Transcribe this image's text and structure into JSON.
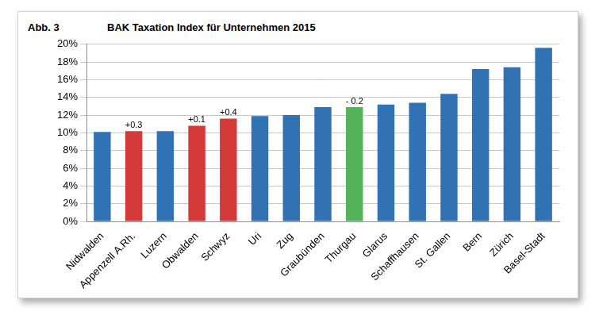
{
  "chart_data": {
    "type": "bar",
    "figure_label": "Abb. 3",
    "title": "BAK Taxation Index für Unternehmen 2015",
    "categories": [
      "Nidwalden",
      "Appenzell A.Rh.",
      "Luzern",
      "Obwalden",
      "Schwyz",
      "Uri",
      "Zug",
      "Graubünden",
      "Thurgau",
      "Glarus",
      "Schaffhausen",
      "St. Gallen",
      "Bern",
      "Zürich",
      "Basel-Stadt"
    ],
    "values": [
      10.1,
      10.2,
      10.2,
      10.8,
      11.6,
      11.9,
      12.0,
      12.9,
      12.9,
      13.2,
      13.4,
      14.4,
      17.2,
      17.4,
      19.6
    ],
    "colors": [
      "#3172b5",
      "#d43a3a",
      "#3172b5",
      "#d43a3a",
      "#d43a3a",
      "#3172b5",
      "#3172b5",
      "#3172b5",
      "#55b35a",
      "#3172b5",
      "#3172b5",
      "#3172b5",
      "#3172b5",
      "#3172b5",
      "#3172b5"
    ],
    "annotations": [
      {
        "category": "Appenzell A.Rh.",
        "text": "+0.3"
      },
      {
        "category": "Obwalden",
        "text": "+0.1"
      },
      {
        "category": "Schwyz",
        "text": "+0.4"
      },
      {
        "category": "Thurgau",
        "text": "- 0.2"
      }
    ],
    "ylim": [
      0,
      20
    ],
    "yticks": [
      {
        "value": 0,
        "label": "0%"
      },
      {
        "value": 2,
        "label": "2%"
      },
      {
        "value": 4,
        "label": "4%"
      },
      {
        "value": 6,
        "label": "6%"
      },
      {
        "value": 8,
        "label": "8%"
      },
      {
        "value": 10,
        "label": "10%"
      },
      {
        "value": 12,
        "label": "12%"
      },
      {
        "value": 14,
        "label": "14%"
      },
      {
        "value": 16,
        "label": "16%"
      },
      {
        "value": 18,
        "label": "18%"
      },
      {
        "value": 20,
        "label": "20%"
      }
    ],
    "grid": true
  }
}
